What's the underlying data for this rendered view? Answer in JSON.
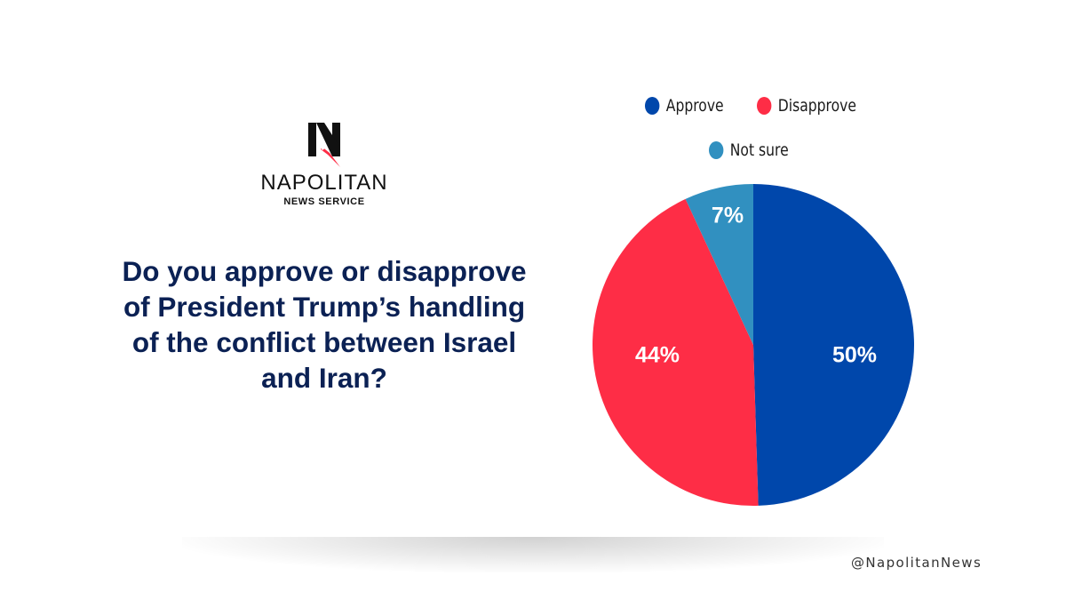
{
  "brand": {
    "name": "NAPOLITAN",
    "subtitle": "NEWS SERVICE",
    "logo_letter": "N",
    "handle": "@NapolitanNews"
  },
  "question": "Do you approve or disapprove of President Trump’s handling of the conflict between Israel and Iran?",
  "colors": {
    "approve": "#0047ab",
    "disapprove": "#fe2d46",
    "not_sure": "#3190c0",
    "question_text": "#0b2154"
  },
  "chart_data": {
    "type": "pie",
    "title": "",
    "slices": [
      {
        "name": "Approve",
        "value": 50,
        "label": "50%",
        "color": "#0047ab"
      },
      {
        "name": "Disapprove",
        "value": 44,
        "label": "44%",
        "color": "#fe2d46"
      },
      {
        "name": "Not sure",
        "value": 7,
        "label": "7%",
        "color": "#3190c0"
      }
    ],
    "legend": {
      "placement": "top",
      "entries": [
        "Approve",
        "Disapprove",
        "Not sure"
      ]
    }
  }
}
